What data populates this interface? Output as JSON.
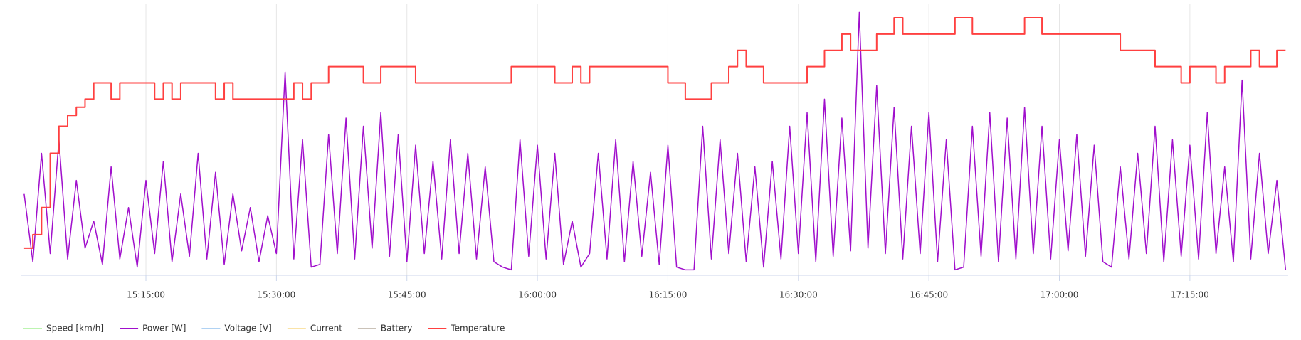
{
  "chart_data": {
    "type": "line",
    "x": [
      "15:01:00",
      "15:02:00",
      "15:03:00",
      "15:04:00",
      "15:05:00",
      "15:06:00",
      "15:07:00",
      "15:08:00",
      "15:09:00",
      "15:10:00",
      "15:11:00",
      "15:12:00",
      "15:13:00",
      "15:14:00",
      "15:15:00",
      "15:16:00",
      "15:17:00",
      "15:18:00",
      "15:19:00",
      "15:20:00",
      "15:21:00",
      "15:22:00",
      "15:23:00",
      "15:24:00",
      "15:25:00",
      "15:26:00",
      "15:27:00",
      "15:28:00",
      "15:29:00",
      "15:30:00",
      "15:31:00",
      "15:32:00",
      "15:33:00",
      "15:34:00",
      "15:35:00",
      "15:36:00",
      "15:37:00",
      "15:38:00",
      "15:39:00",
      "15:40:00",
      "15:41:00",
      "15:42:00",
      "15:43:00",
      "15:44:00",
      "15:45:00",
      "15:46:00",
      "15:47:00",
      "15:48:00",
      "15:49:00",
      "15:50:00",
      "15:51:00",
      "15:52:00",
      "15:53:00",
      "15:54:00",
      "15:55:00",
      "15:56:00",
      "15:57:00",
      "15:58:00",
      "15:59:00",
      "16:00:00",
      "16:01:00",
      "16:02:00",
      "16:03:00",
      "16:04:00",
      "16:05:00",
      "16:06:00",
      "16:07:00",
      "16:08:00",
      "16:09:00",
      "16:10:00",
      "16:11:00",
      "16:12:00",
      "16:13:00",
      "16:14:00",
      "16:15:00",
      "16:16:00",
      "16:17:00",
      "16:18:00",
      "16:19:00",
      "16:20:00",
      "16:21:00",
      "16:22:00",
      "16:23:00",
      "16:24:00",
      "16:25:00",
      "16:26:00",
      "16:27:00",
      "16:28:00",
      "16:29:00",
      "16:30:00",
      "16:31:00",
      "16:32:00",
      "16:33:00",
      "16:34:00",
      "16:35:00",
      "16:36:00",
      "16:37:00",
      "16:38:00",
      "16:39:00",
      "16:40:00",
      "16:41:00",
      "16:42:00",
      "16:43:00",
      "16:44:00",
      "16:45:00",
      "16:46:00",
      "16:47:00",
      "16:48:00",
      "16:49:00",
      "16:50:00",
      "16:51:00",
      "16:52:00",
      "16:53:00",
      "16:54:00",
      "16:55:00",
      "16:56:00",
      "16:57:00",
      "16:58:00",
      "16:59:00",
      "17:00:00",
      "17:01:00",
      "17:02:00",
      "17:03:00",
      "17:04:00",
      "17:05:00",
      "17:06:00",
      "17:07:00",
      "17:08:00",
      "17:09:00",
      "17:10:00",
      "17:11:00",
      "17:12:00",
      "17:13:00",
      "17:14:00",
      "17:15:00",
      "17:16:00",
      "17:17:00",
      "17:18:00",
      "17:19:00",
      "17:20:00",
      "17:21:00",
      "17:22:00",
      "17:23:00",
      "17:24:00",
      "17:25:00",
      "17:26:00"
    ],
    "xlim": [
      "15:00:36",
      "17:26:18"
    ],
    "xticks": [
      "15:15:00",
      "15:30:00",
      "15:45:00",
      "16:00:00",
      "16:15:00",
      "16:30:00",
      "16:45:00",
      "17:00:00",
      "17:15:00"
    ],
    "ylim": [
      0,
      100
    ],
    "grid": true,
    "series": [
      {
        "name": "Speed [km/h]",
        "color": "#90ed7d",
        "hidden": true
      },
      {
        "name": "Power [W]",
        "color": "#a00fcc",
        "values": [
          30,
          5,
          45,
          8,
          50,
          6,
          35,
          10,
          20,
          4,
          40,
          6,
          25,
          3,
          35,
          8,
          42,
          5,
          30,
          7,
          45,
          6,
          38,
          4,
          30,
          9,
          25,
          5,
          22,
          8,
          75,
          6,
          50,
          3,
          4,
          52,
          8,
          58,
          6,
          55,
          10,
          60,
          7,
          52,
          5,
          48,
          8,
          42,
          6,
          50,
          8,
          45,
          6,
          40,
          5,
          3,
          2,
          50,
          7,
          48,
          6,
          45,
          4,
          20,
          3,
          8,
          45,
          6,
          50,
          5,
          42,
          7,
          38,
          4,
          48,
          3,
          2,
          2,
          55,
          6,
          50,
          8,
          45,
          5,
          40,
          3,
          42,
          6,
          55,
          8,
          60,
          5,
          65,
          7,
          58,
          9,
          97,
          10,
          70,
          8,
          62,
          6,
          55,
          8,
          60,
          5,
          50,
          2,
          3,
          55,
          7,
          60,
          5,
          58,
          6,
          62,
          8,
          55,
          6,
          50,
          9,
          52,
          7,
          48,
          5,
          3,
          40,
          6,
          45,
          8,
          55,
          5,
          50,
          7,
          48,
          6,
          60,
          8,
          40,
          5,
          72,
          6,
          45,
          8,
          35,
          2
        ]
      },
      {
        "name": "Voltage [V]",
        "color": "#7cb5ec",
        "hidden": true
      },
      {
        "name": "Current",
        "color": "#f7d26e",
        "hidden": true
      },
      {
        "name": "Battery",
        "color": "#a89a8a",
        "hidden": true
      },
      {
        "name": "Temperature",
        "color": "#ff4040",
        "step": true,
        "values": [
          10,
          15,
          25,
          45,
          55,
          59,
          62,
          65,
          71,
          71,
          65,
          71,
          71,
          71,
          71,
          65,
          71,
          65,
          71,
          71,
          71,
          71,
          65,
          71,
          65,
          65,
          65,
          65,
          65,
          65,
          65,
          71,
          65,
          71,
          71,
          77,
          77,
          77,
          77,
          71,
          71,
          77,
          77,
          77,
          77,
          71,
          71,
          71,
          71,
          71,
          71,
          71,
          71,
          71,
          71,
          71,
          77,
          77,
          77,
          77,
          77,
          71,
          71,
          77,
          71,
          77,
          77,
          77,
          77,
          77,
          77,
          77,
          77,
          77,
          71,
          71,
          65,
          65,
          65,
          71,
          71,
          77,
          83,
          77,
          77,
          71,
          71,
          71,
          71,
          71,
          77,
          77,
          83,
          83,
          89,
          83,
          83,
          83,
          89,
          89,
          95,
          89,
          89,
          89,
          89,
          89,
          89,
          95,
          95,
          89,
          89,
          89,
          89,
          89,
          89,
          95,
          95,
          89,
          89,
          89,
          89,
          89,
          89,
          89,
          89,
          89,
          83,
          83,
          83,
          83,
          77,
          77,
          77,
          71,
          77,
          77,
          77,
          71,
          77,
          77,
          77,
          83,
          77,
          77,
          83,
          83
        ]
      }
    ]
  }
}
